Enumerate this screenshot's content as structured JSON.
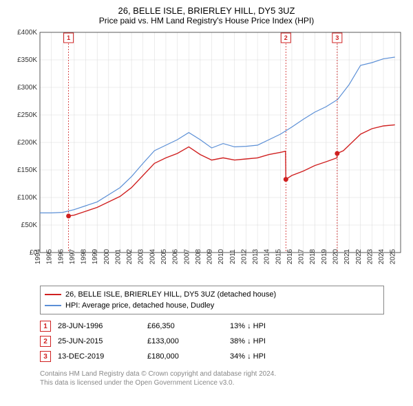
{
  "title": "26, BELLE ISLE, BRIERLEY HILL, DY5 3UZ",
  "subtitle": "Price paid vs. HM Land Registry's House Price Index (HPI)",
  "chart": {
    "type": "line",
    "background_color": "#ffffff",
    "grid_color": "#d9d9d9",
    "axis_color": "#333333",
    "marker_color": "#d02020",
    "xlim": [
      1994,
      2025.5
    ],
    "ylim": [
      0,
      400000
    ],
    "ytick_step": 50000,
    "yticks": [
      "£0",
      "£50K",
      "£100K",
      "£150K",
      "£200K",
      "£250K",
      "£300K",
      "£350K",
      "£400K"
    ],
    "xticks": [
      1994,
      1995,
      1996,
      1997,
      1998,
      1999,
      2000,
      2001,
      2002,
      2003,
      2004,
      2005,
      2006,
      2007,
      2008,
      2009,
      2010,
      2011,
      2012,
      2013,
      2014,
      2015,
      2016,
      2017,
      2018,
      2019,
      2020,
      2021,
      2022,
      2023,
      2024,
      2025
    ],
    "label_fontsize": 10,
    "series": [
      {
        "name": "property",
        "color": "#d02020",
        "width": 1.4,
        "data": [
          [
            1996.5,
            66350
          ],
          [
            1997,
            68000
          ],
          [
            1998,
            75000
          ],
          [
            1999,
            82000
          ],
          [
            2000,
            92000
          ],
          [
            2001,
            102000
          ],
          [
            2002,
            118000
          ],
          [
            2003,
            140000
          ],
          [
            2004,
            162000
          ],
          [
            2005,
            172000
          ],
          [
            2006,
            180000
          ],
          [
            2007,
            192000
          ],
          [
            2008,
            178000
          ],
          [
            2009,
            168000
          ],
          [
            2010,
            172000
          ],
          [
            2011,
            168000
          ],
          [
            2012,
            170000
          ],
          [
            2013,
            172000
          ],
          [
            2014,
            178000
          ],
          [
            2015,
            182000
          ],
          [
            2015.45,
            184000
          ],
          [
            2015.48,
            133000
          ],
          [
            2016,
            140000
          ],
          [
            2017,
            148000
          ],
          [
            2018,
            158000
          ],
          [
            2019,
            165000
          ],
          [
            2019.94,
            172000
          ],
          [
            2019.96,
            180000
          ],
          [
            2020.5,
            185000
          ],
          [
            2021,
            195000
          ],
          [
            2022,
            215000
          ],
          [
            2023,
            225000
          ],
          [
            2024,
            230000
          ],
          [
            2025,
            232000
          ]
        ]
      },
      {
        "name": "hpi",
        "color": "#5b8fd6",
        "width": 1.2,
        "data": [
          [
            1994,
            72000
          ],
          [
            1995,
            72000
          ],
          [
            1996,
            73000
          ],
          [
            1997,
            78000
          ],
          [
            1998,
            85000
          ],
          [
            1999,
            92000
          ],
          [
            2000,
            105000
          ],
          [
            2001,
            118000
          ],
          [
            2002,
            138000
          ],
          [
            2003,
            162000
          ],
          [
            2004,
            185000
          ],
          [
            2005,
            195000
          ],
          [
            2006,
            205000
          ],
          [
            2007,
            218000
          ],
          [
            2008,
            205000
          ],
          [
            2009,
            190000
          ],
          [
            2010,
            198000
          ],
          [
            2011,
            192000
          ],
          [
            2012,
            193000
          ],
          [
            2013,
            195000
          ],
          [
            2014,
            205000
          ],
          [
            2015,
            215000
          ],
          [
            2016,
            228000
          ],
          [
            2017,
            242000
          ],
          [
            2018,
            255000
          ],
          [
            2019,
            265000
          ],
          [
            2020,
            278000
          ],
          [
            2021,
            305000
          ],
          [
            2022,
            340000
          ],
          [
            2023,
            345000
          ],
          [
            2024,
            352000
          ],
          [
            2025,
            355000
          ]
        ]
      }
    ],
    "markers": [
      {
        "n": "1",
        "x": 1996.5,
        "label_y": 390000,
        "event_y": 66350
      },
      {
        "n": "2",
        "x": 2015.48,
        "label_y": 390000,
        "event_y": 133000
      },
      {
        "n": "3",
        "x": 2019.96,
        "label_y": 390000,
        "event_y": 180000
      }
    ]
  },
  "legend": {
    "items": [
      {
        "color": "#d02020",
        "label": "26, BELLE ISLE, BRIERLEY HILL, DY5 3UZ (detached house)"
      },
      {
        "color": "#5b8fd6",
        "label": "HPI: Average price, detached house, Dudley"
      }
    ]
  },
  "events": [
    {
      "n": "1",
      "date": "28-JUN-1996",
      "price": "£66,350",
      "delta": "13% ↓ HPI"
    },
    {
      "n": "2",
      "date": "25-JUN-2015",
      "price": "£133,000",
      "delta": "38% ↓ HPI"
    },
    {
      "n": "3",
      "date": "13-DEC-2019",
      "price": "£180,000",
      "delta": "34% ↓ HPI"
    }
  ],
  "footer": {
    "line1": "Contains HM Land Registry data © Crown copyright and database right 2024.",
    "line2": "This data is licensed under the Open Government Licence v3.0."
  }
}
